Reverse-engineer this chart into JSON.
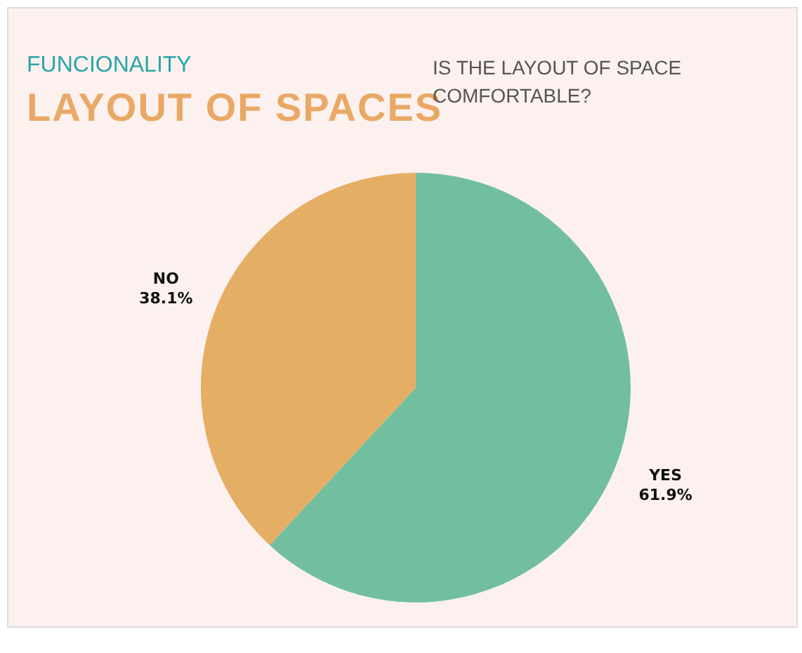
{
  "chart_data": {
    "type": "pie",
    "title": "LAYOUT OF SPACES",
    "subtitle": "IS THE LAYOUT OF SPACE COMFORTABLE?",
    "annotations": [
      "FUNCIONALITY"
    ],
    "categories": [
      "YES",
      "NO"
    ],
    "values": [
      61.9,
      38.1
    ],
    "colors": [
      "#72bf9f",
      "#e5ae65"
    ],
    "value_labels": [
      "61.9%",
      "38.1%"
    ],
    "legend": false
  }
}
